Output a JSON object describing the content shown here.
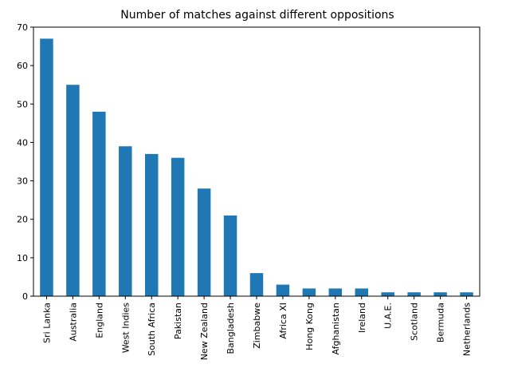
{
  "chart_data": {
    "type": "bar",
    "title": "Number of matches against different oppositions",
    "xlabel": "",
    "ylabel": "",
    "categories": [
      "Sri Lanka",
      "Australia",
      "England",
      "West Indies",
      "South Africa",
      "Pakistan",
      "New Zealand",
      "Bangladesh",
      "Zimbabwe",
      "Africa XI",
      "Hong Kong",
      "Afghanistan",
      "Ireland",
      "U.A.E.",
      "Scotland",
      "Bermuda",
      "Netherlands"
    ],
    "values": [
      67,
      55,
      48,
      39,
      37,
      36,
      28,
      21,
      6,
      3,
      2,
      2,
      2,
      1,
      1,
      1,
      1
    ],
    "ylim": [
      0,
      70
    ],
    "yticks": [
      0,
      10,
      20,
      30,
      40,
      50,
      60,
      70
    ],
    "grid": false,
    "legend": "none",
    "bar_color": "#1f77b4"
  }
}
